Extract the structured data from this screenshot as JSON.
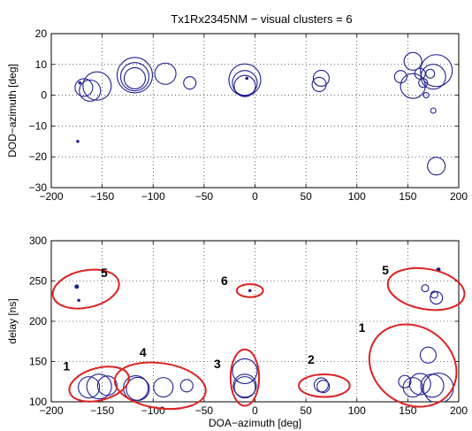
{
  "title": "Tx1Rx2345NM − visual clusters = 6",
  "colors": {
    "circles": "#1f1f8f",
    "clusters": "#dd2222",
    "axis": "#000000",
    "grid": "#000000"
  },
  "chart_data": [
    {
      "type": "scatter",
      "xlabel": "",
      "ylabel": "DOD−azimuth [deg]",
      "xlim": [
        -200,
        200
      ],
      "ylim": [
        -30,
        20
      ],
      "xticks": [
        -200,
        -150,
        -100,
        -50,
        0,
        50,
        100,
        150,
        200
      ],
      "yticks": [
        -30,
        -20,
        -10,
        0,
        10,
        20
      ],
      "xtick_labels": [
        "−200",
        "−150",
        "−100",
        "−50",
        "0",
        "50",
        "100",
        "150",
        "200"
      ],
      "ytick_labels": [
        "−30",
        "−20",
        "−10",
        "0",
        "10",
        "20"
      ],
      "grid": true,
      "series": [
        {
          "marker": "circle",
          "points": [
            {
              "x": -172,
              "y": 4,
              "size": 1
            },
            {
              "x": -168,
              "y": 2.5,
              "size": 10
            },
            {
              "x": -162,
              "y": 1.5,
              "size": 12
            },
            {
              "x": -155,
              "y": 3,
              "size": 16
            },
            {
              "x": -118,
              "y": 6.5,
              "size": 20
            },
            {
              "x": -118,
              "y": 6,
              "size": 16
            },
            {
              "x": -118,
              "y": 5.5,
              "size": 12
            },
            {
              "x": -88,
              "y": 7,
              "size": 12
            },
            {
              "x": -64,
              "y": 4,
              "size": 7
            },
            {
              "x": -10,
              "y": 5,
              "size": 18
            },
            {
              "x": -10,
              "y": 4,
              "size": 14
            },
            {
              "x": -10,
              "y": 3,
              "size": 12
            },
            {
              "x": -8,
              "y": 5.5,
              "size": 1
            },
            {
              "x": 65,
              "y": 5.5,
              "size": 9
            },
            {
              "x": 63,
              "y": 3.5,
              "size": 8
            },
            {
              "x": 143,
              "y": 6,
              "size": 7
            },
            {
              "x": 155,
              "y": 11,
              "size": 10
            },
            {
              "x": 155,
              "y": 3,
              "size": 14
            },
            {
              "x": 162,
              "y": 7,
              "size": 6
            },
            {
              "x": 165,
              "y": 4,
              "size": 5
            },
            {
              "x": 168,
              "y": 0,
              "size": 3
            },
            {
              "x": 172,
              "y": 7,
              "size": 5
            },
            {
              "x": 175,
              "y": 6,
              "size": 14
            },
            {
              "x": 178,
              "y": 8,
              "size": 18
            },
            {
              "x": 175,
              "y": -5,
              "size": 3
            },
            {
              "x": 178,
              "y": -23,
              "size": 10
            },
            {
              "x": -174,
              "y": -15,
              "size": 1
            }
          ]
        }
      ]
    },
    {
      "type": "scatter",
      "xlabel": "DOA−azimuth [deg]",
      "ylabel": "delay [ns]",
      "xlim": [
        -200,
        200
      ],
      "ylim": [
        100,
        300
      ],
      "xticks": [
        -200,
        -150,
        -100,
        -50,
        0,
        50,
        100,
        150,
        200
      ],
      "yticks": [
        100,
        150,
        200,
        250,
        300
      ],
      "xtick_labels": [
        "−200",
        "−150",
        "−100",
        "−50",
        "0",
        "50",
        "100",
        "150",
        "200"
      ],
      "ytick_labels": [
        "100",
        "150",
        "200",
        "250",
        "300"
      ],
      "grid": true,
      "series": [
        {
          "marker": "circle",
          "points": [
            {
              "x": -175,
              "y": 243,
              "size": 2
            },
            {
              "x": -173,
              "y": 226,
              "size": 1
            },
            {
              "x": -5,
              "y": 238,
              "size": 1
            },
            {
              "x": -163,
              "y": 118,
              "size": 12
            },
            {
              "x": -153,
              "y": 119,
              "size": 14
            },
            {
              "x": -145,
              "y": 120,
              "size": 11
            },
            {
              "x": -117,
              "y": 117,
              "size": 14
            },
            {
              "x": -115,
              "y": 116,
              "size": 13
            },
            {
              "x": -90,
              "y": 118,
              "size": 11
            },
            {
              "x": -67,
              "y": 120,
              "size": 7
            },
            {
              "x": -10,
              "y": 138,
              "size": 14
            },
            {
              "x": -10,
              "y": 120,
              "size": 13
            },
            {
              "x": -10,
              "y": 118,
              "size": 12
            },
            {
              "x": 65,
              "y": 121,
              "size": 8
            },
            {
              "x": 67,
              "y": 119,
              "size": 7
            },
            {
              "x": 147,
              "y": 125,
              "size": 7
            },
            {
              "x": 155,
              "y": 118,
              "size": 11
            },
            {
              "x": 162,
              "y": 122,
              "size": 12
            },
            {
              "x": 170,
              "y": 158,
              "size": 9
            },
            {
              "x": 174,
              "y": 120,
              "size": 13
            },
            {
              "x": 180,
              "y": 117,
              "size": 17
            },
            {
              "x": 167,
              "y": 241,
              "size": 4
            },
            {
              "x": 176,
              "y": 233,
              "size": 4
            },
            {
              "x": 178,
              "y": 229,
              "size": 7
            },
            {
              "x": 180,
              "y": 264,
              "size": 2
            }
          ]
        }
      ],
      "clusters": [
        {
          "label": "1",
          "cx": -153,
          "cy": 122,
          "rx": 30,
          "ry": 20,
          "rot": -15,
          "label_x": -185,
          "label_y": 139
        },
        {
          "label": "4",
          "cx": -93,
          "cy": 120,
          "rx": 45,
          "ry": 28,
          "rot": 8,
          "label_x": -110,
          "label_y": 156
        },
        {
          "label": "3",
          "cx": -10,
          "cy": 130,
          "rx": 14,
          "ry": 35,
          "rot": 0,
          "label_x": -37,
          "label_y": 142
        },
        {
          "label": "2",
          "cx": 68,
          "cy": 120,
          "rx": 25,
          "ry": 14,
          "rot": 0,
          "label_x": 55,
          "label_y": 147
        },
        {
          "label": "1",
          "cx": 155,
          "cy": 145,
          "rx": 45,
          "ry": 48,
          "rot": 35,
          "label_x": 105,
          "label_y": 187
        },
        {
          "label": "5",
          "cx": -166,
          "cy": 240,
          "rx": 33,
          "ry": 23,
          "rot": -12,
          "label_x": -148,
          "label_y": 255
        },
        {
          "label": "6",
          "cx": -5,
          "cy": 238,
          "rx": 13,
          "ry": 8,
          "rot": 0,
          "label_x": -30,
          "label_y": 245
        },
        {
          "label": "5",
          "cx": 168,
          "cy": 240,
          "rx": 38,
          "ry": 25,
          "rot": 10,
          "label_x": 128,
          "label_y": 258
        }
      ]
    }
  ]
}
